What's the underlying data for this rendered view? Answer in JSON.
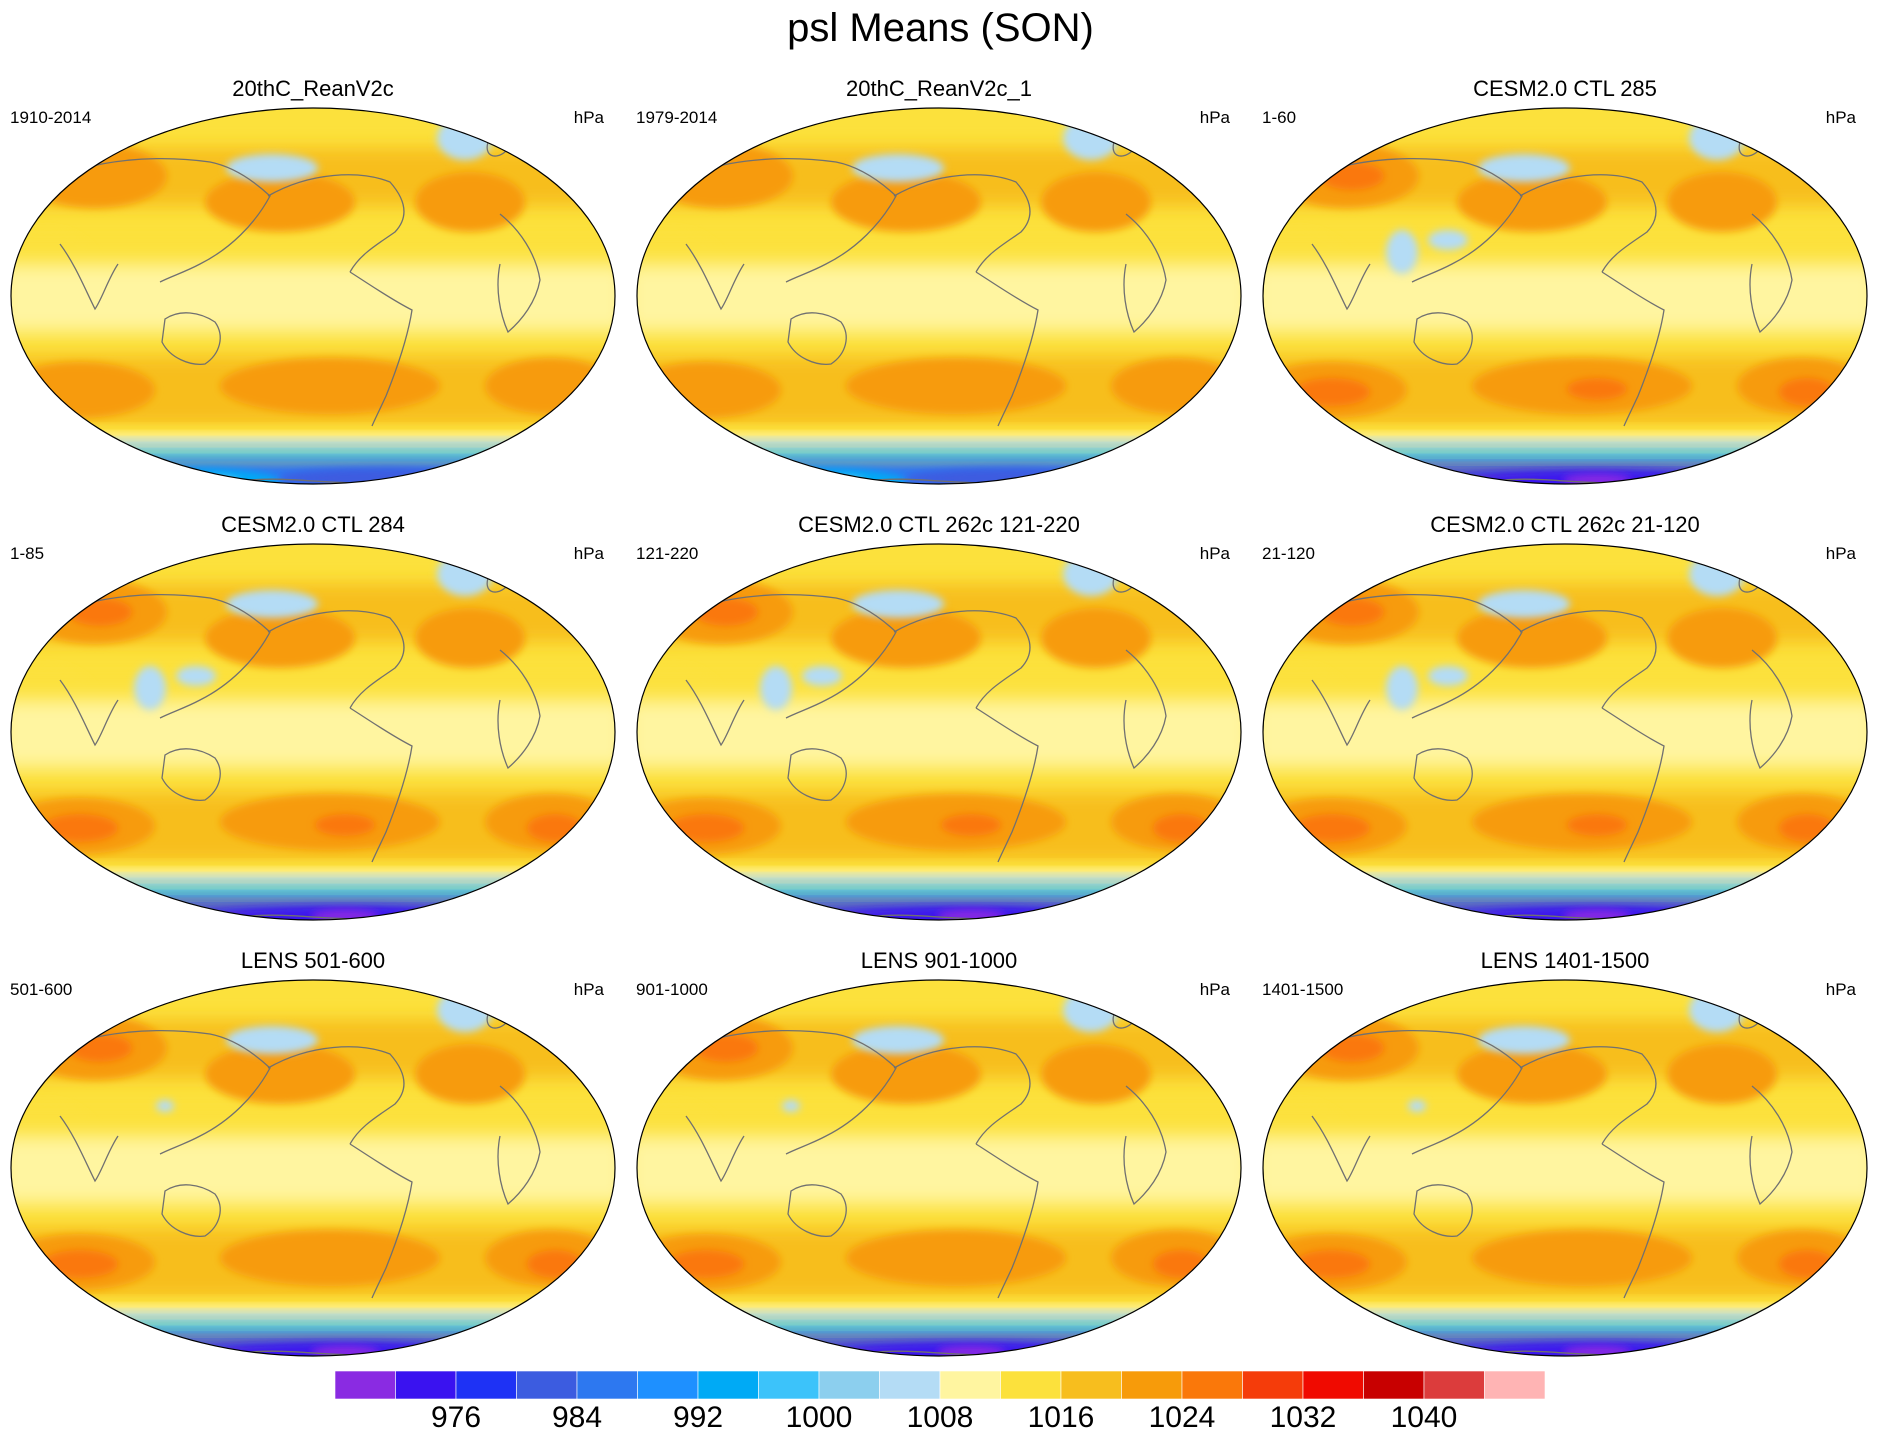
{
  "title": "psl Means (SON)",
  "panels": [
    {
      "title": "20thC_ReanV2c",
      "years": "1910-2014",
      "units": "hPa",
      "variant": "rean"
    },
    {
      "title": "20thC_ReanV2c_1",
      "years": "1979-2014",
      "units": "hPa",
      "variant": "rean"
    },
    {
      "title": "CESM2.0 CTL 285",
      "years": "1-60",
      "units": "hPa",
      "variant": "model"
    },
    {
      "title": "CESM2.0 CTL 284",
      "years": "1-85",
      "units": "hPa",
      "variant": "model"
    },
    {
      "title": "CESM2.0 CTL 262c 121-220",
      "years": "121-220",
      "units": "hPa",
      "variant": "model"
    },
    {
      "title": "CESM2.0 CTL 262c 21-120",
      "years": "21-120",
      "units": "hPa",
      "variant": "model"
    },
    {
      "title": "LENS 501-600",
      "years": "501-600",
      "units": "hPa",
      "variant": "lens"
    },
    {
      "title": "LENS 901-1000",
      "years": "901-1000",
      "units": "hPa",
      "variant": "lens"
    },
    {
      "title": "LENS 1401-1500",
      "years": "1401-1500",
      "units": "hPa",
      "variant": "lens"
    }
  ],
  "colorbar": {
    "colors": [
      "#8a2be2",
      "#3a12f0",
      "#1e32f5",
      "#3c5ce0",
      "#2d78f0",
      "#1e90ff",
      "#00aaf5",
      "#3cc3fa",
      "#8ccfee",
      "#b4dcf5",
      "#fff5a0",
      "#fce13c",
      "#f7be1e",
      "#f79b0a",
      "#fa780a",
      "#f53c0a",
      "#f00a00",
      "#c80000",
      "#dc3c3c",
      "#ffb4b4"
    ],
    "labels": [
      "976",
      "984",
      "992",
      "1000",
      "1008",
      "1016",
      "1024",
      "1032",
      "1040"
    ]
  },
  "chart_data": {
    "type": "map",
    "title": "psl Means (SON)",
    "variable": "psl",
    "season": "SON",
    "units": "hPa",
    "contour_levels": [
      972,
      976,
      980,
      984,
      988,
      992,
      996,
      1000,
      1004,
      1008,
      1012,
      1016,
      1020,
      1024,
      1028,
      1032,
      1036,
      1040,
      1044
    ],
    "colorbar_tick_labels": [
      "976",
      "984",
      "992",
      "1000",
      "1008",
      "1016",
      "1024",
      "1032",
      "1040"
    ],
    "layout": "3x3 grid"
  }
}
